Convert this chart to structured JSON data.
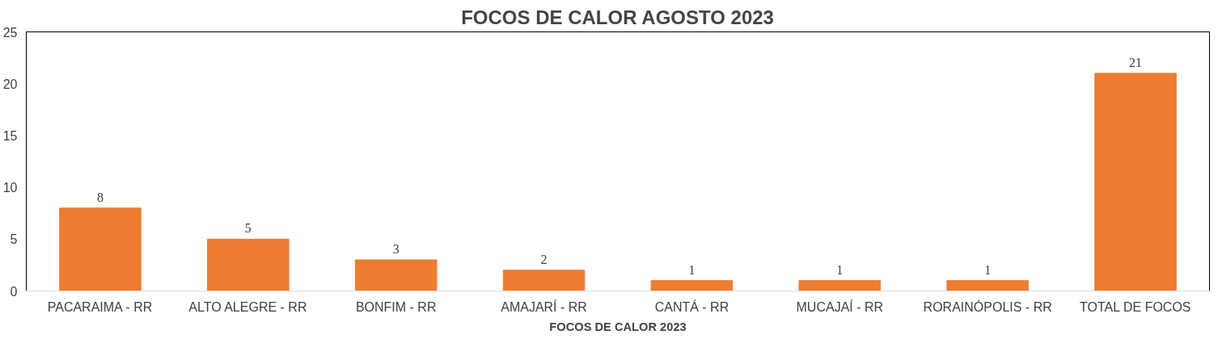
{
  "chart_data": {
    "type": "bar",
    "title": "FOCOS DE CALOR AGOSTO 2023",
    "xlabel": "FOCOS DE CALOR 2023",
    "categories": [
      "PACARAIMA - RR",
      "ALTO ALEGRE - RR",
      "BONFIM - RR",
      "AMAJARÍ - RR",
      "CANTÁ - RR",
      "MUCAJAÍ - RR",
      "RORAINÓPOLIS - RR",
      "TOTAL DE FOCOS"
    ],
    "values": [
      8,
      5,
      3,
      2,
      1,
      1,
      1,
      21
    ],
    "color": "#ed7d31",
    "ylim": [
      0,
      25
    ],
    "yticks": [
      0,
      5,
      10,
      15,
      20,
      25
    ],
    "grid": false,
    "data_labels": true
  }
}
